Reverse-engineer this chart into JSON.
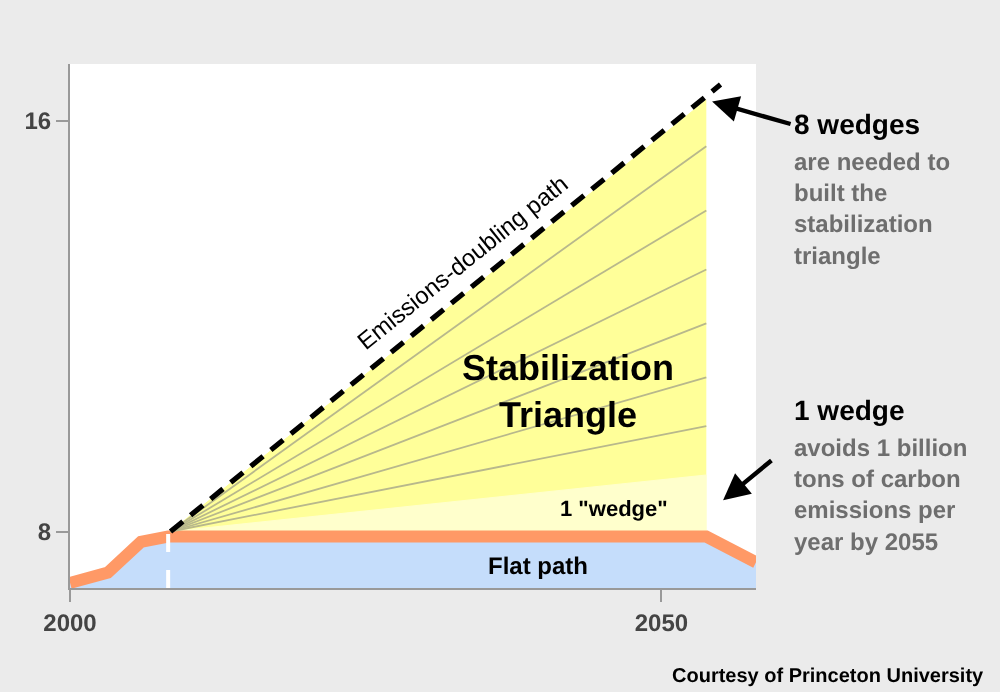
{
  "chart_data": {
    "type": "area",
    "xlim": [
      2000,
      2058
    ],
    "ylim": [
      6.9,
      17.1
    ],
    "xticks": [
      2000,
      2050
    ],
    "yticks": [
      8,
      16
    ],
    "series": [
      {
        "color": "#ffff99",
        "x": [
          2008.5,
          2053.8
        ],
        "values": [
          8.0,
          16.4
        ]
      },
      {
        "color": "#ffffcc",
        "x": [
          2008.5,
          2053.8
        ],
        "values": [
          8.0,
          9.1
        ]
      },
      {
        "color": "#c5ddfb",
        "x": [
          2000,
          2003.2,
          2006,
          2008.3,
          2053.8,
          2058
        ],
        "values": [
          7.0,
          7.2,
          7.8,
          7.9,
          7.9,
          7.4
        ]
      },
      {
        "type": "line",
        "color": "#ff9966",
        "x": [
          2000,
          2003.2,
          2006,
          2008.3,
          2053.8,
          2058
        ],
        "values": [
          7.0,
          7.2,
          7.8,
          7.9,
          7.9,
          7.4
        ]
      },
      {
        "type": "line",
        "color": "#b8b88c",
        "x": [
          2008.5,
          2053.8
        ],
        "values": [
          8.0,
          10.05
        ]
      },
      {
        "type": "line",
        "color": "#b8b88c",
        "x": [
          2008.5,
          2053.8
        ],
        "values": [
          8.0,
          11
        ]
      },
      {
        "type": "line",
        "color": "#b8b88c",
        "x": [
          2008.5,
          2053.8
        ],
        "values": [
          8.0,
          12.05
        ]
      },
      {
        "type": "line",
        "color": "#b8b88c",
        "x": [
          2008.5,
          2053.8
        ],
        "values": [
          8.0,
          13.1
        ]
      },
      {
        "type": "line",
        "color": "#b8b88c",
        "x": [
          2008.5,
          2053.8
        ],
        "values": [
          8.0,
          14.25
        ]
      },
      {
        "type": "line",
        "color": "#b8b88c",
        "x": [
          2008.5,
          2053.8
        ],
        "values": [
          8.0,
          15.5
        ]
      },
      {
        "type": "line",
        "name": "Emissions-doubling path",
        "color": "#000000",
        "line_style": "dashed",
        "x": [
          2008.5,
          2055
        ],
        "values": [
          8.0,
          16.7
        ]
      }
    ],
    "ref_lines": [
      {
        "axis": "x",
        "value": 2008.3,
        "color": "#ffffff",
        "line_style": "dashed"
      }
    ],
    "annotations": [
      "Stabilization Triangle",
      "1 \"wedge\"",
      "Flat path",
      {
        "text": "8 wedges",
        "x": 2053.8,
        "y": 16.4
      },
      "are needed to built the stabilization triangle",
      "1 wedge",
      "avoids 1 billion tons of carbon emissions per year by 2055",
      "Courtesy of Princeton University"
    ]
  }
}
